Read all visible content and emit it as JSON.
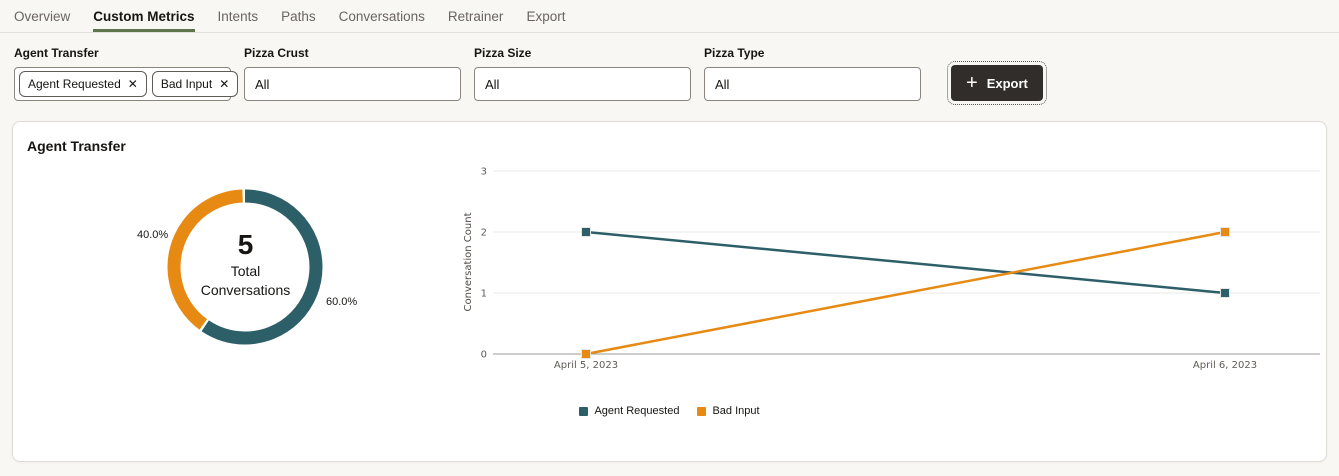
{
  "tabs": {
    "items": [
      {
        "label": "Overview",
        "active": false
      },
      {
        "label": "Custom Metrics",
        "active": true
      },
      {
        "label": "Intents",
        "active": false
      },
      {
        "label": "Paths",
        "active": false
      },
      {
        "label": "Conversations",
        "active": false
      },
      {
        "label": "Retrainer",
        "active": false
      },
      {
        "label": "Export",
        "active": false
      }
    ]
  },
  "filters": {
    "agent_transfer": {
      "label": "Agent Transfer",
      "chips": [
        {
          "label": "Agent Requested"
        },
        {
          "label": "Bad Input"
        }
      ]
    },
    "pizza_crust": {
      "label": "Pizza Crust",
      "value": "All"
    },
    "pizza_size": {
      "label": "Pizza Size",
      "value": "All"
    },
    "pizza_type": {
      "label": "Pizza Type",
      "value": "All"
    }
  },
  "export_button": {
    "label": "Export",
    "plus_glyph": "+"
  },
  "icons": {
    "close_glyph": "✕"
  },
  "card": {
    "title": "Agent Transfer"
  },
  "colors": {
    "teal": "#2D5F68",
    "orange": "#E68A14",
    "tab_underline": "#5D744C",
    "button_bg": "#312D2A"
  },
  "chart_data": [
    {
      "type": "pie",
      "subtype": "donut",
      "title": "Agent Transfer",
      "center_value": "5",
      "center_label": "Total Conversations",
      "slices": [
        {
          "label": "Agent Requested",
          "pct": 60.0,
          "display": "60.0%",
          "color": "#2D5F68"
        },
        {
          "label": "Bad Input",
          "pct": 40.0,
          "display": "40.0%",
          "color": "#E68A14"
        }
      ]
    },
    {
      "type": "line",
      "x": [
        "April 5, 2023",
        "April 6, 2023"
      ],
      "series": [
        {
          "name": "Agent Requested",
          "color": "#2D5F68",
          "values": [
            2,
            1
          ]
        },
        {
          "name": "Bad Input",
          "color": "#E68A14",
          "values": [
            0,
            2
          ]
        }
      ],
      "ylabel": "Conversation Count",
      "yticks": [
        0,
        1,
        2,
        3
      ],
      "ylim": [
        0,
        3
      ],
      "grid": true,
      "legend_position": "bottom"
    }
  ]
}
